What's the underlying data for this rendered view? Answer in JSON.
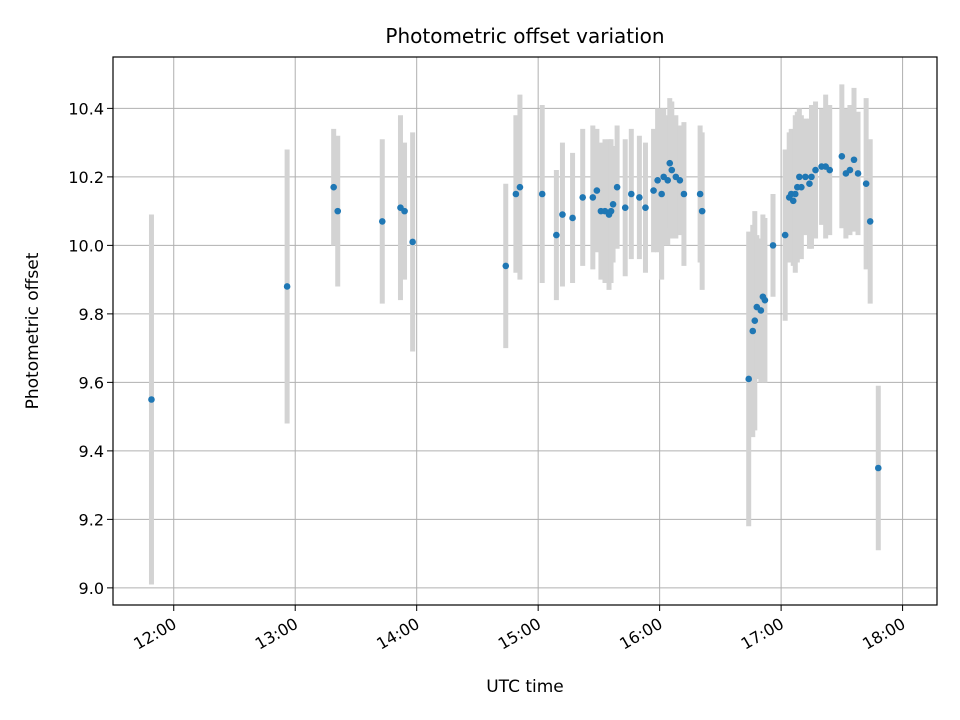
{
  "chart_data": {
    "type": "scatter",
    "title": "Photometric offset variation",
    "xlabel": "UTC time",
    "ylabel": "Photometric offset",
    "xlim": [
      "11:30",
      "18:17"
    ],
    "ylim": [
      8.95,
      10.55
    ],
    "grid": true,
    "x_ticks": [
      "12:00",
      "13:00",
      "14:00",
      "15:00",
      "16:00",
      "17:00",
      "18:00"
    ],
    "y_ticks": [
      "9.0",
      "9.2",
      "9.4",
      "9.6",
      "9.8",
      "10.0",
      "10.2",
      "10.4"
    ],
    "colors": {
      "point": "#1f77b4",
      "errorbar": "#d3d3d3",
      "grid": "#b0b0b0"
    },
    "series": [
      {
        "x": [
          "11:49",
          "12:56",
          "13:19",
          "13:21",
          "13:43",
          "13:52",
          "13:54",
          "13:58",
          "14:44",
          "14:49",
          "14:51",
          "15:02",
          "15:09",
          "15:12",
          "15:17",
          "15:22",
          "15:27",
          "15:29",
          "15:31",
          "15:33",
          "15:35",
          "15:36",
          "15:37",
          "15:39",
          "15:43",
          "15:46",
          "15:50",
          "15:53",
          "15:57",
          "15:59",
          "16:01",
          "16:02",
          "16:04",
          "16:05",
          "16:06",
          "16:08",
          "16:10",
          "16:12",
          "16:20",
          "16:21",
          "16:44",
          "16:46",
          "16:47",
          "16:48",
          "16:50",
          "16:51",
          "16:52",
          "16:56",
          "17:02",
          "17:04",
          "17:05",
          "17:06",
          "17:07",
          "17:08",
          "17:09",
          "17:10",
          "17:12",
          "17:14",
          "17:15",
          "17:17",
          "17:20",
          "17:22",
          "17:24",
          "17:30",
          "17:32",
          "17:34",
          "17:36",
          "17:38",
          "17:42",
          "17:44",
          "17:48"
        ],
        "y": [
          9.55,
          9.88,
          10.17,
          10.1,
          10.07,
          10.11,
          10.1,
          10.01,
          9.94,
          10.15,
          10.17,
          10.15,
          10.03,
          10.09,
          10.08,
          10.14,
          10.14,
          10.16,
          10.1,
          10.1,
          10.09,
          10.1,
          10.12,
          10.17,
          10.11,
          10.15,
          10.14,
          10.11,
          10.16,
          10.19,
          10.15,
          10.2,
          10.19,
          10.24,
          10.22,
          10.2,
          10.19,
          10.15,
          10.15,
          10.1,
          9.61,
          9.75,
          9.78,
          9.82,
          9.81,
          9.85,
          9.84,
          10.0,
          10.03,
          10.14,
          10.15,
          10.13,
          10.15,
          10.17,
          10.2,
          10.17,
          10.2,
          10.18,
          10.2,
          10.22,
          10.23,
          10.23,
          10.22,
          10.26,
          10.21,
          10.22,
          10.25,
          10.21,
          10.18,
          10.07,
          9.35
        ],
        "err": [
          0.54,
          0.4,
          0.17,
          0.22,
          0.24,
          0.27,
          0.2,
          0.32,
          0.24,
          0.23,
          0.27,
          0.26,
          0.19,
          0.21,
          0.19,
          0.2,
          0.21,
          0.18,
          0.2,
          0.21,
          0.22,
          0.21,
          0.17,
          0.18,
          0.2,
          0.19,
          0.18,
          0.19,
          0.18,
          0.21,
          0.25,
          0.2,
          0.19,
          0.19,
          0.2,
          0.18,
          0.16,
          0.21,
          0.2,
          0.23,
          0.43,
          0.31,
          0.32,
          0.21,
          0.21,
          0.24,
          0.24,
          0.15,
          0.25,
          0.19,
          0.19,
          0.19,
          0.23,
          0.22,
          0.2,
          0.21,
          0.17,
          0.19,
          0.21,
          0.2,
          0.17,
          0.21,
          0.19,
          0.21,
          0.19,
          0.19,
          0.21,
          0.18,
          0.25,
          0.24,
          0.24
        ]
      }
    ]
  }
}
